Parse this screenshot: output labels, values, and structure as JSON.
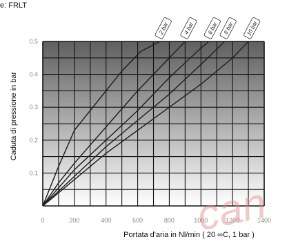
{
  "page": {
    "label": "e: FRLT"
  },
  "watermark": {
    "text": "can",
    "color": "#e08a8a"
  },
  "colors": {
    "plot_bg_top": "#5f5f5f",
    "plot_bg_bottom": "#ffffff",
    "grid": "#111111",
    "line": "#222222"
  },
  "chart_data": {
    "type": "line",
    "xlabel": "Portata d'aria in Nl/min ( 20 ∞C, 1 bar )",
    "ylabel": "Caduta di pressione in bar",
    "xlim": [
      0,
      1400
    ],
    "ylim": [
      0,
      0.5
    ],
    "x_ticks": [
      "0",
      "200",
      "400",
      "600",
      "800",
      "1000",
      "1200",
      "1400"
    ],
    "y_ticks": [
      "0.1",
      "0.2",
      "0.3",
      "0.4",
      "0.5"
    ],
    "grid": true,
    "legend": "top-right, tags at line ends",
    "series": [
      {
        "name": "2 bar",
        "x": [
          0,
          100,
          200,
          300,
          400,
          500,
          620,
          740
        ],
        "y": [
          0,
          0.12,
          0.23,
          0.29,
          0.35,
          0.41,
          0.47,
          0.5
        ]
      },
      {
        "name": "4 bar",
        "x": [
          0,
          100,
          200,
          400,
          600,
          800,
          900
        ],
        "y": [
          0,
          0.07,
          0.13,
          0.24,
          0.35,
          0.45,
          0.5
        ]
      },
      {
        "name": "6 bar",
        "x": [
          0,
          200,
          400,
          600,
          800,
          1000,
          1050
        ],
        "y": [
          0,
          0.11,
          0.2,
          0.29,
          0.39,
          0.48,
          0.5
        ]
      },
      {
        "name": "8 bar",
        "x": [
          0,
          200,
          400,
          600,
          800,
          1000,
          1150
        ],
        "y": [
          0,
          0.09,
          0.18,
          0.26,
          0.34,
          0.43,
          0.5
        ]
      },
      {
        "name": "10 bar",
        "x": [
          0,
          200,
          400,
          600,
          800,
          1000,
          1200,
          1300
        ],
        "y": [
          0,
          0.08,
          0.16,
          0.23,
          0.3,
          0.37,
          0.45,
          0.5
        ]
      }
    ]
  }
}
